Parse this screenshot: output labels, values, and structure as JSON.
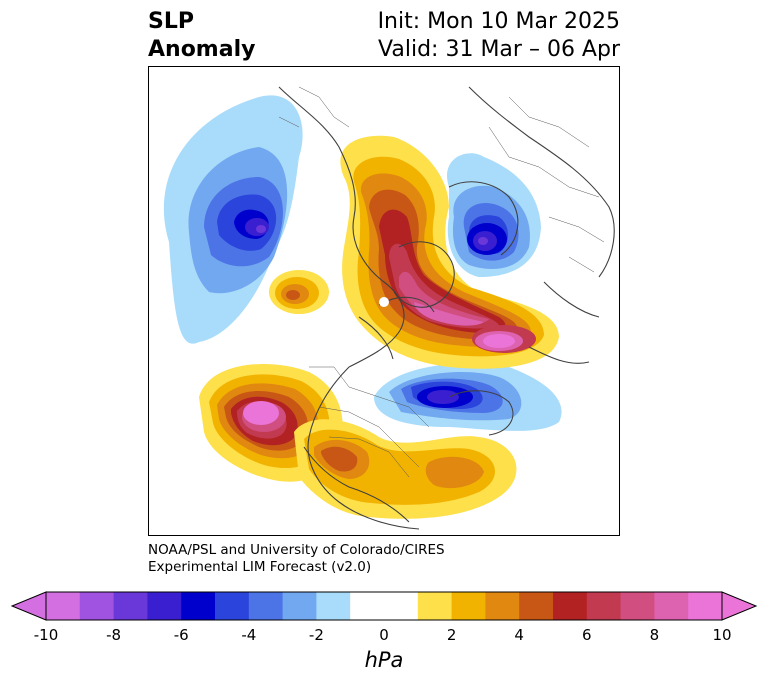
{
  "header": {
    "title_line1": "SLP",
    "title_line2": "Anomaly",
    "init_text": "Init: Mon 10 Mar 2025",
    "valid_text": "Valid: 31 Mar – 06 Apr"
  },
  "credit": {
    "line1": "NOAA/PSL and University of Colorado/CIRES",
    "line2": "Experimental LIM Forecast (v2.0)"
  },
  "colorbar": {
    "unit": "hPa",
    "ticks": [
      "-10",
      "-8",
      "-6",
      "-4",
      "-2",
      "0",
      "2",
      "4",
      "6",
      "8",
      "10"
    ],
    "colors": [
      "#d36fe0",
      "#a052e0",
      "#6a38d8",
      "#3a1fd0",
      "#0000cd",
      "#2a44dc",
      "#4c74e6",
      "#72a8f0",
      "#a9dcfa",
      "#ffffff",
      "#ffffff",
      "#fee04a",
      "#f1b300",
      "#e08810",
      "#c85716",
      "#b22222",
      "#c23a50",
      "#d04f80",
      "#dd62b0",
      "#ea74d8"
    ],
    "extend_low": "#d36fe0",
    "extend_high": "#ea74d8"
  },
  "map": {
    "projection": "polar stereographic (North Pole)",
    "marker_color": "#ffffff"
  }
}
